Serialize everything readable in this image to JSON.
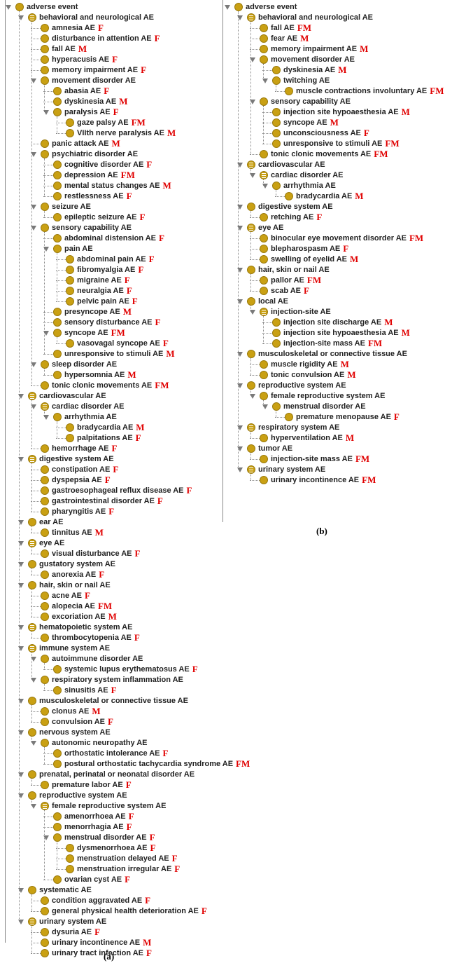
{
  "panels": [
    {
      "caption": "(a)",
      "nodes": [
        {
          "label": "adverse event",
          "depth": 0,
          "expanded": true,
          "icon": "circle"
        },
        {
          "label": "behavioral and neurological AE",
          "depth": 1,
          "expanded": true,
          "icon": "list"
        },
        {
          "label": "amnesia AE",
          "depth": 2,
          "tag": "F"
        },
        {
          "label": "disturbance in attention AE",
          "depth": 2,
          "tag": "F"
        },
        {
          "label": "fall AE",
          "depth": 2,
          "tag": "M"
        },
        {
          "label": "hyperacusis AE",
          "depth": 2,
          "tag": "F"
        },
        {
          "label": "memory impairment AE",
          "depth": 2,
          "tag": "F"
        },
        {
          "label": "movement disorder AE",
          "depth": 2,
          "expanded": true
        },
        {
          "label": "abasia AE",
          "depth": 3,
          "tag": "F"
        },
        {
          "label": "dyskinesia AE",
          "depth": 3,
          "tag": "M"
        },
        {
          "label": "paralysis AE",
          "depth": 3,
          "expanded": true,
          "tag": "F"
        },
        {
          "label": "gaze palsy AE",
          "depth": 4,
          "tag": "FM"
        },
        {
          "label": "VIIth nerve paralysis AE",
          "depth": 4,
          "tag": "M"
        },
        {
          "label": "panic attack AE",
          "depth": 2,
          "tag": "M"
        },
        {
          "label": "psychiatric disorder AE",
          "depth": 2,
          "expanded": true
        },
        {
          "label": "cognitive disorder AE",
          "depth": 3,
          "tag": "F"
        },
        {
          "label": "depression AE",
          "depth": 3,
          "tag": "FM"
        },
        {
          "label": "mental status changes AE",
          "depth": 3,
          "tag": "M"
        },
        {
          "label": "restlessness AE",
          "depth": 3,
          "tag": "F"
        },
        {
          "label": "seizure AE",
          "depth": 2,
          "expanded": true
        },
        {
          "label": "epileptic seizure AE",
          "depth": 3,
          "tag": "F"
        },
        {
          "label": "sensory capability AE",
          "depth": 2,
          "expanded": true
        },
        {
          "label": "abdominal distension AE",
          "depth": 3,
          "tag": "F"
        },
        {
          "label": "pain AE",
          "depth": 3,
          "expanded": true
        },
        {
          "label": "abdominal pain AE",
          "depth": 4,
          "tag": "F"
        },
        {
          "label": "fibromyalgia AE",
          "depth": 4,
          "tag": "F"
        },
        {
          "label": "migraine AE",
          "depth": 4,
          "tag": "F"
        },
        {
          "label": "neuralgia AE",
          "depth": 4,
          "tag": "F"
        },
        {
          "label": "pelvic pain AE",
          "depth": 4,
          "tag": "F"
        },
        {
          "label": "presyncope AE",
          "depth": 3,
          "tag": "M"
        },
        {
          "label": "sensory disturbance AE",
          "depth": 3,
          "tag": "F"
        },
        {
          "label": "syncope AE",
          "depth": 3,
          "expanded": true,
          "tag": "FM"
        },
        {
          "label": "vasovagal syncope  AE",
          "depth": 4,
          "tag": "F"
        },
        {
          "label": "unresponsive to stimuli AE",
          "depth": 3,
          "tag": "M"
        },
        {
          "label": "sleep disorder AE",
          "depth": 2,
          "expanded": true
        },
        {
          "label": "hypersomnia AE",
          "depth": 3,
          "tag": "M"
        },
        {
          "label": "tonic clonic movements AE",
          "depth": 2,
          "tag": "FM"
        },
        {
          "label": "cardiovascular AE",
          "depth": 1,
          "expanded": true,
          "icon": "list"
        },
        {
          "label": "cardiac disorder AE",
          "depth": 2,
          "expanded": true,
          "icon": "list"
        },
        {
          "label": "arrhythmia AE",
          "depth": 3,
          "expanded": true
        },
        {
          "label": "bradycardia AE",
          "depth": 4,
          "tag": "M"
        },
        {
          "label": "palpitations AE",
          "depth": 4,
          "tag": "F"
        },
        {
          "label": "hemorrhage AE",
          "depth": 2,
          "tag": "F"
        },
        {
          "label": "digestive system AE",
          "depth": 1,
          "expanded": true,
          "icon": "list"
        },
        {
          "label": "constipation AE",
          "depth": 2,
          "tag": "F"
        },
        {
          "label": "dyspepsia AE",
          "depth": 2,
          "tag": "F"
        },
        {
          "label": "gastroesophageal reflux disease AE",
          "depth": 2,
          "tag": "F"
        },
        {
          "label": "gastrointestinal disorder AE",
          "depth": 2,
          "tag": "F"
        },
        {
          "label": "pharyngitis AE",
          "depth": 2,
          "tag": "F"
        },
        {
          "label": "ear  AE",
          "depth": 1,
          "expanded": true
        },
        {
          "label": "tinnitus AE",
          "depth": 2,
          "tag": "M"
        },
        {
          "label": "eye AE",
          "depth": 1,
          "expanded": true,
          "icon": "list"
        },
        {
          "label": "visual disturbance AE",
          "depth": 2,
          "tag": "F"
        },
        {
          "label": "gustatory system AE",
          "depth": 1,
          "expanded": true
        },
        {
          "label": "anorexia AE",
          "depth": 2,
          "tag": "F"
        },
        {
          "label": "hair, skin or nail AE",
          "depth": 1,
          "expanded": true
        },
        {
          "label": "acne AE",
          "depth": 2,
          "tag": "F"
        },
        {
          "label": "alopecia AE",
          "depth": 2,
          "tag": "FM"
        },
        {
          "label": "excoriation AE",
          "depth": 2,
          "tag": "M"
        },
        {
          "label": "hematopoietic system AE",
          "depth": 1,
          "expanded": true,
          "icon": "list"
        },
        {
          "label": "thrombocytopenia AE",
          "depth": 2,
          "tag": "F"
        },
        {
          "label": "immune system AE",
          "depth": 1,
          "expanded": true,
          "icon": "list"
        },
        {
          "label": "autoimmune disorder AE",
          "depth": 2,
          "expanded": true
        },
        {
          "label": "systemic lupus erythematosus AE",
          "depth": 3,
          "tag": "F"
        },
        {
          "label": "respiratory system inflammation AE",
          "depth": 2,
          "expanded": true
        },
        {
          "label": "sinusitis AE",
          "depth": 3,
          "tag": "F"
        },
        {
          "label": "musculoskeletal or connective tissue AE",
          "depth": 1,
          "expanded": true
        },
        {
          "label": "clonus AE",
          "depth": 2,
          "tag": "M"
        },
        {
          "label": "convulsion AE",
          "depth": 2,
          "tag": "F"
        },
        {
          "label": "nervous system AE",
          "depth": 1,
          "expanded": true
        },
        {
          "label": "autonomic neuropathy AE",
          "depth": 2,
          "expanded": true
        },
        {
          "label": "orthostatic intolerance AE",
          "depth": 3,
          "tag": "F"
        },
        {
          "label": "postural orthostatic tachycardia syndrome AE",
          "depth": 3,
          "tag": "FM"
        },
        {
          "label": "prenatal, perinatal or neonatal disorder AE",
          "depth": 1,
          "expanded": true
        },
        {
          "label": "premature labor AE",
          "depth": 2,
          "tag": "F"
        },
        {
          "label": "reproductive system AE",
          "depth": 1,
          "expanded": true
        },
        {
          "label": "female reproductive system AE",
          "depth": 2,
          "expanded": true,
          "icon": "list"
        },
        {
          "label": "amenorrhoea AE",
          "depth": 3,
          "tag": "F"
        },
        {
          "label": "menorrhagia AE",
          "depth": 3,
          "tag": "F"
        },
        {
          "label": "menstrual disorder AE",
          "depth": 3,
          "expanded": true,
          "tag": "F"
        },
        {
          "label": "dysmenorrhoea AE",
          "depth": 4,
          "tag": "F"
        },
        {
          "label": "menstruation delayed AE",
          "depth": 4,
          "tag": "F"
        },
        {
          "label": "menstruation irregular AE",
          "depth": 4,
          "tag": "F"
        },
        {
          "label": "ovarian cyst AE",
          "depth": 3,
          "tag": "F"
        },
        {
          "label": "systematic AE",
          "depth": 1,
          "expanded": true
        },
        {
          "label": "condition aggravated AE",
          "depth": 2,
          "tag": "F"
        },
        {
          "label": "general physical health deterioration AE",
          "depth": 2,
          "tag": "F"
        },
        {
          "label": "urinary system AE",
          "depth": 1,
          "expanded": true,
          "icon": "list"
        },
        {
          "label": "dysuria AE",
          "depth": 2,
          "tag": "F"
        },
        {
          "label": "urinary incontinence AE",
          "depth": 2,
          "tag": "M"
        },
        {
          "label": "urinary tract infection AE",
          "depth": 2,
          "tag": "F"
        }
      ]
    },
    {
      "caption": "(b)",
      "nodes": [
        {
          "label": "adverse event",
          "depth": 0,
          "expanded": true,
          "icon": "circle"
        },
        {
          "label": "behavioral and neurological AE",
          "depth": 1,
          "expanded": true,
          "icon": "list"
        },
        {
          "label": "fall AE",
          "depth": 2,
          "tag": "FM"
        },
        {
          "label": "fear AE",
          "depth": 2,
          "tag": "M"
        },
        {
          "label": "memory impairment AE",
          "depth": 2,
          "tag": "M"
        },
        {
          "label": "movement disorder AE",
          "depth": 2,
          "expanded": true
        },
        {
          "label": "dyskinesia AE",
          "depth": 3,
          "tag": "M"
        },
        {
          "label": "twitching AE",
          "depth": 3,
          "expanded": true
        },
        {
          "label": "muscle contractions involuntary AE",
          "depth": 4,
          "tag": "FM"
        },
        {
          "label": "sensory capability AE",
          "depth": 2,
          "expanded": true
        },
        {
          "label": "injection site hypoaesthesia AE",
          "depth": 3,
          "tag": "M"
        },
        {
          "label": "syncope AE",
          "depth": 3,
          "tag": "M"
        },
        {
          "label": "unconsciousness AE",
          "depth": 3,
          "tag": "F"
        },
        {
          "label": "unresponsive to stimuli AE",
          "depth": 3,
          "tag": "FM"
        },
        {
          "label": "tonic clonic movements AE",
          "depth": 2,
          "tag": "FM"
        },
        {
          "label": "cardiovascular AE",
          "depth": 1,
          "expanded": true,
          "icon": "list"
        },
        {
          "label": "cardiac disorder AE",
          "depth": 2,
          "expanded": true,
          "icon": "list"
        },
        {
          "label": "arrhythmia AE",
          "depth": 3,
          "expanded": true
        },
        {
          "label": "bradycardia AE",
          "depth": 4,
          "tag": "M"
        },
        {
          "label": "digestive system AE",
          "depth": 1,
          "expanded": true
        },
        {
          "label": "retching AE",
          "depth": 2,
          "tag": "F"
        },
        {
          "label": "eye AE",
          "depth": 1,
          "expanded": true,
          "icon": "list"
        },
        {
          "label": "binocular eye movement disorder AE",
          "depth": 2,
          "tag": "FM"
        },
        {
          "label": "blepharospasm AE",
          "depth": 2,
          "tag": "F"
        },
        {
          "label": "swelling of eyelid AE",
          "depth": 2,
          "tag": "M"
        },
        {
          "label": "hair, skin or nail AE",
          "depth": 1,
          "expanded": true
        },
        {
          "label": "pallor AE",
          "depth": 2,
          "tag": "FM"
        },
        {
          "label": "scab AE",
          "depth": 2,
          "tag": "F"
        },
        {
          "label": "local AE",
          "depth": 1,
          "expanded": true
        },
        {
          "label": "injection-site AE",
          "depth": 2,
          "expanded": true,
          "icon": "list"
        },
        {
          "label": "injection site discharge AE",
          "depth": 3,
          "tag": "M"
        },
        {
          "label": "injection site hypoaesthesia AE",
          "depth": 3,
          "tag": "M"
        },
        {
          "label": "injection-site mass AE",
          "depth": 3,
          "tag": "FM"
        },
        {
          "label": "musculoskeletal or connective tissue AE",
          "depth": 1,
          "expanded": true
        },
        {
          "label": "muscle rigidity AE",
          "depth": 2,
          "tag": "M"
        },
        {
          "label": "tonic convulsion AE",
          "depth": 2,
          "tag": "M"
        },
        {
          "label": "reproductive system AE",
          "depth": 1,
          "expanded": true
        },
        {
          "label": "female reproductive system AE",
          "depth": 2,
          "expanded": true
        },
        {
          "label": "menstrual disorder AE",
          "depth": 3,
          "expanded": true
        },
        {
          "label": "premature menopause AE",
          "depth": 4,
          "tag": "F"
        },
        {
          "label": "respiratory system AE",
          "depth": 1,
          "expanded": true,
          "icon": "list"
        },
        {
          "label": "hyperventilation AE",
          "depth": 2,
          "tag": "M"
        },
        {
          "label": "tumor AE",
          "depth": 1,
          "expanded": true
        },
        {
          "label": "injection-site mass AE",
          "depth": 2,
          "tag": "FM"
        },
        {
          "label": "urinary system AE",
          "depth": 1,
          "expanded": true,
          "icon": "list"
        },
        {
          "label": "urinary incontinence AE",
          "depth": 2,
          "tag": "FM"
        }
      ]
    }
  ]
}
